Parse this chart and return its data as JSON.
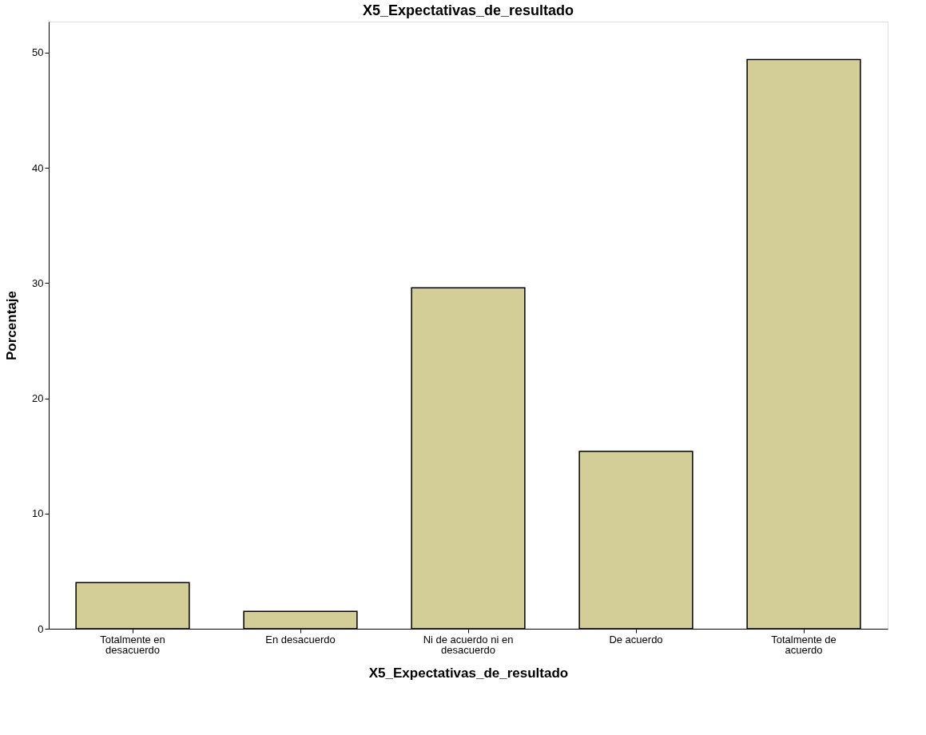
{
  "chart_data": {
    "type": "bar",
    "title": "X5_Expectativas_de_resultado",
    "xlabel": "X5_Expectativas_de_resultado",
    "ylabel": "Porcentaje",
    "categories": [
      "Totalmente en\ndesacuerdo",
      "En desacuerdo",
      "Ni de acuerdo ni en\ndesacuerdo",
      "De acuerdo",
      "Totalmente de\nacuerdo"
    ],
    "values": [
      4.0,
      1.5,
      29.6,
      15.4,
      49.4
    ],
    "color": "#d3ce97",
    "ylim": [
      0,
      52.7
    ],
    "yticks": [
      0,
      10,
      20,
      30,
      40,
      50
    ],
    "grid": false
  }
}
